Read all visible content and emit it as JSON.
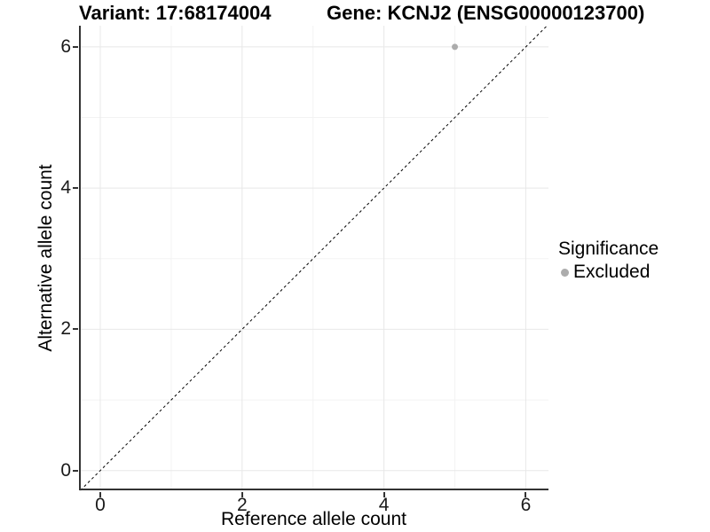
{
  "chart_data": {
    "type": "scatter",
    "titles": {
      "left": "Variant: 17:68174004",
      "right": "Gene: KCNJ2 (ENSG00000123700)"
    },
    "xlabel": "Reference allele count",
    "ylabel": "Alternative allele count",
    "x_ticks": [
      0,
      2,
      4,
      6
    ],
    "y_ticks": [
      0,
      2,
      4,
      6
    ],
    "x_minor_ticks": [
      1,
      3,
      5
    ],
    "y_minor_ticks": [
      1,
      3,
      5
    ],
    "xlim": [
      -0.3,
      6.32
    ],
    "ylim": [
      -0.28,
      6.3
    ],
    "grid": true,
    "legend_position": "right",
    "series": [
      {
        "name": "Excluded",
        "color": "#acacac",
        "point_radius": 3.5,
        "points": [
          {
            "x": 5,
            "y": 6
          }
        ]
      }
    ],
    "reference_line": {
      "slope": 1,
      "intercept": 0,
      "style": "dashed",
      "color": "#000000"
    },
    "legend": {
      "title": "Significance",
      "entries": [
        {
          "label": "Excluded",
          "color": "#acacac"
        }
      ]
    },
    "colors": {
      "grid_major": "#e8e8e8",
      "grid_minor": "#f3f3f3",
      "axis_line": "#333333",
      "axis_text": "#1a1a1a"
    }
  }
}
